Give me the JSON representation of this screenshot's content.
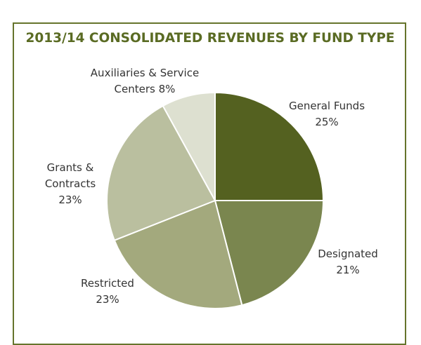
{
  "chart_data": {
    "type": "pie",
    "title": "2013/14 CONSOLIDATED REVENUES BY FUND TYPE",
    "categories": [
      "General Funds",
      "Designated",
      "Restricted",
      "Grants & Contracts",
      "Auxiliaries & Service Centers"
    ],
    "values": [
      25,
      21,
      23,
      23,
      8
    ],
    "value_labels": [
      "25%",
      "21%",
      "23%",
      "23%",
      "8%"
    ],
    "colors": [
      "#546120",
      "#7a864f",
      "#a3a97d",
      "#babf9f",
      "#dde0d0"
    ]
  }
}
